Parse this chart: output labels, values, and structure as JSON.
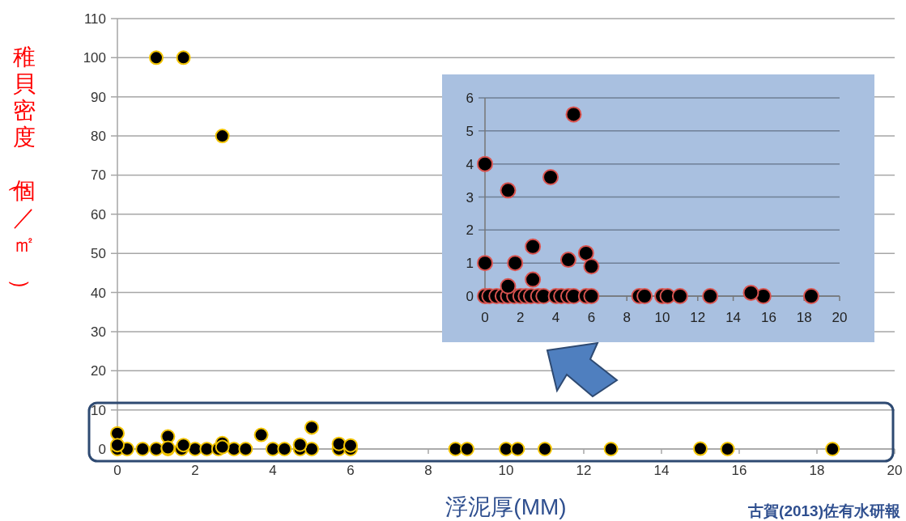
{
  "chart_data": [
    {
      "type": "scatter",
      "xlabel": "浮泥厚(MM)",
      "ylabel": "稚貝密度（個／㎡）",
      "annotations": [
        "古賀(2013)佐有水研報"
      ],
      "color": "#000000",
      "marker": "circle",
      "grid": "y",
      "xlim": [
        0,
        20
      ],
      "ylim": [
        0,
        110
      ],
      "xticks": [
        0,
        2,
        4,
        6,
        8,
        10,
        12,
        14,
        16,
        18,
        20
      ],
      "yticks": [
        0,
        10,
        20,
        30,
        40,
        50,
        60,
        70,
        80,
        90,
        100,
        110
      ],
      "x": [
        0,
        0.25,
        0.65,
        1.0,
        1.3,
        1.65,
        2.0,
        2.3,
        2.6,
        3.0,
        3.3,
        4.0,
        4.3,
        4.7,
        5.0,
        5.7,
        6.0,
        8.7,
        9.0,
        10.0,
        10.3,
        11.0,
        12.7,
        15.7,
        18.4,
        0,
        0,
        1.3,
        1.3,
        1.7,
        2.7,
        2.7,
        3.7,
        4.7,
        5.0,
        5.7,
        6.0,
        15.0,
        1.0,
        1.7,
        2.7
      ],
      "values": [
        0,
        0,
        0,
        0,
        0,
        0,
        0,
        0,
        0,
        0,
        0,
        0,
        0,
        0,
        0,
        0,
        0,
        0,
        0,
        0,
        0,
        0,
        0,
        0,
        0,
        4,
        1,
        3.2,
        0.3,
        1,
        1.5,
        0.5,
        3.6,
        1.1,
        5.5,
        1.3,
        0.9,
        0.1,
        100,
        100,
        80
      ]
    },
    {
      "type": "scatter",
      "color": "#000000",
      "marker": "circle",
      "grid": "y",
      "xlim": [
        0,
        20
      ],
      "ylim": [
        0,
        6
      ],
      "xticks": [
        0,
        2,
        4,
        6,
        8,
        10,
        12,
        14,
        16,
        18,
        20
      ],
      "yticks": [
        0,
        1,
        2,
        3,
        4,
        5,
        6
      ],
      "x": [
        0,
        0.25,
        0.65,
        1.0,
        1.3,
        1.65,
        2.0,
        2.3,
        2.6,
        3.0,
        3.3,
        4.0,
        4.3,
        4.7,
        5.0,
        5.7,
        6.0,
        8.7,
        9.0,
        10.0,
        10.3,
        11.0,
        12.7,
        15.7,
        18.4,
        0,
        0,
        1.3,
        1.3,
        1.7,
        2.7,
        2.7,
        3.7,
        4.7,
        5.0,
        5.7,
        6.0,
        15.0
      ],
      "values": [
        0,
        0,
        0,
        0,
        0,
        0,
        0,
        0,
        0,
        0,
        0,
        0,
        0,
        0,
        0,
        0,
        0,
        0,
        0,
        0,
        0,
        0,
        0,
        0,
        0,
        4,
        1,
        3.2,
        0.3,
        1,
        1.5,
        0.5,
        3.6,
        1.1,
        5.5,
        1.3,
        0.9,
        0.1
      ]
    }
  ]
}
